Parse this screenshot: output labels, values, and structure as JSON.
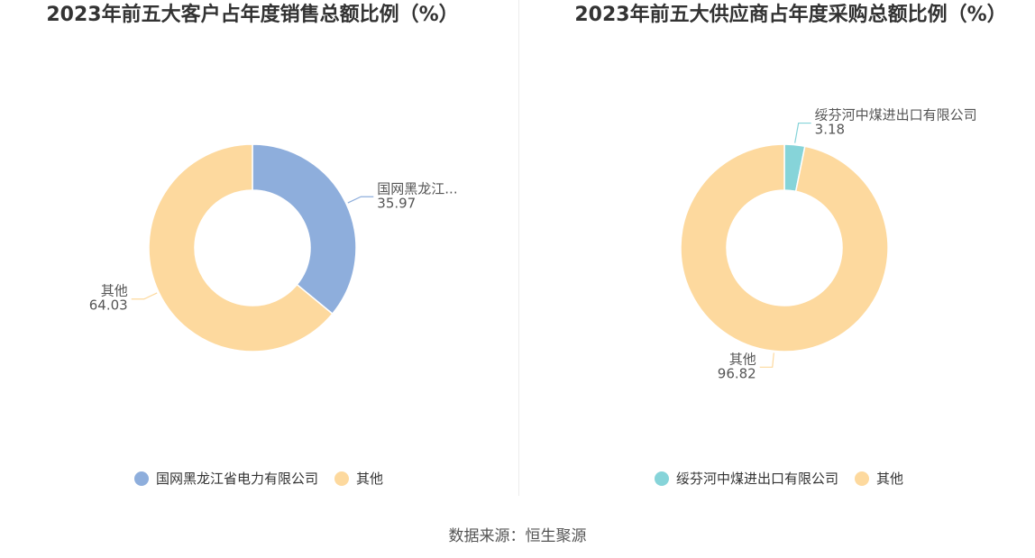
{
  "chart_data": [
    {
      "type": "pie",
      "title": "2023年前五大客户占年度销售总额比例（%）",
      "categories": [
        "国网黑龙江省电力有限公司",
        "其他"
      ],
      "values": [
        35.97,
        64.03
      ],
      "slice_labels": [
        "国网黑龙江...",
        "其他"
      ],
      "colors": [
        "#8EAEDC",
        "#FDD99E"
      ],
      "legend_position": "bottom"
    },
    {
      "type": "pie",
      "title": "2023年前五大供应商占年度采购总额比例（%）",
      "categories": [
        "绥芬河中煤进出口有限公司",
        "其他"
      ],
      "values": [
        3.18,
        96.82
      ],
      "slice_labels": [
        "绥芬河中煤进出口有限公司",
        "其他"
      ],
      "colors": [
        "#86D4D9",
        "#FDD99E"
      ],
      "legend_position": "bottom"
    }
  ],
  "footer": {
    "source": "数据来源：恒生聚源"
  }
}
